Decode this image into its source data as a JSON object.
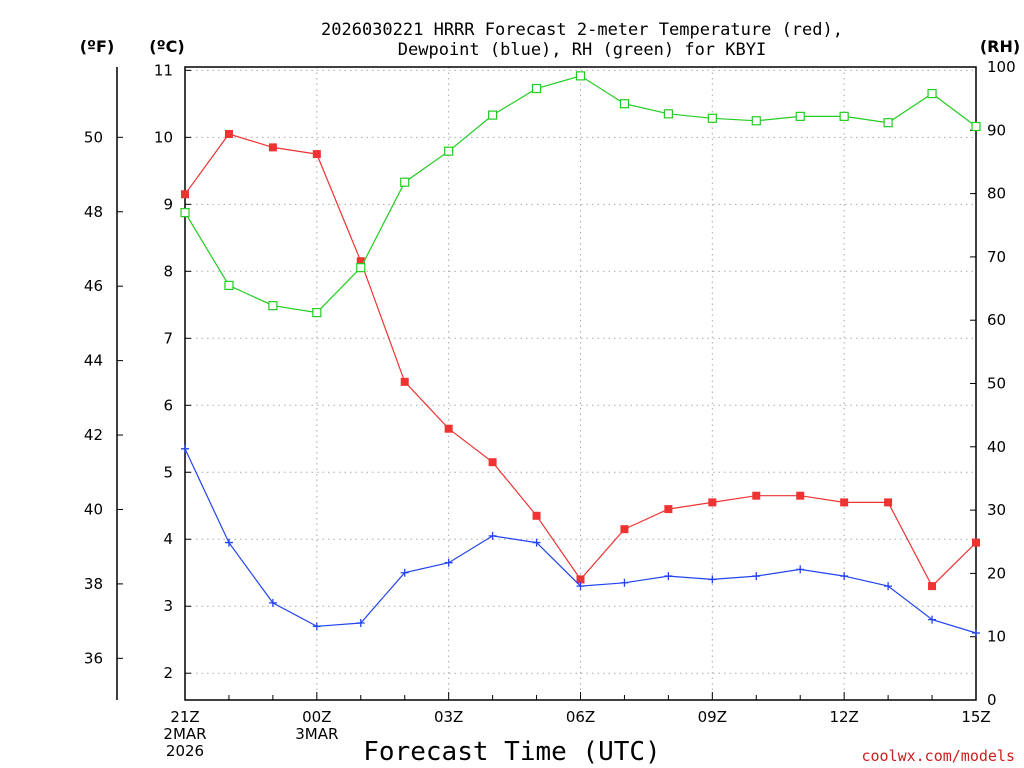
{
  "chart_data": {
    "type": "line",
    "title": [
      "2026030221 HRRR Forecast 2-meter Temperature (red),",
      "Dewpoint (blue), RH (green) for KBYI"
    ],
    "xlabel": "Forecast Time (UTC)",
    "credit": "coolwx.com/models",
    "units": {
      "fahrenheit": "(ºF)",
      "celsius": "(ºC)",
      "rh": "(RH)"
    },
    "x": [
      "21Z",
      "22Z",
      "23Z",
      "00Z",
      "01Z",
      "02Z",
      "03Z",
      "04Z",
      "05Z",
      "06Z",
      "07Z",
      "08Z",
      "09Z",
      "10Z",
      "11Z",
      "12Z",
      "13Z",
      "14Z",
      "15Z"
    ],
    "x_tick_labels": [
      {
        "hour": 0,
        "lines": [
          "21Z",
          "2MAR",
          "2026"
        ]
      },
      {
        "hour": 3,
        "lines": [
          "00Z",
          "3MAR"
        ]
      },
      {
        "hour": 6,
        "lines": [
          "03Z"
        ]
      },
      {
        "hour": 9,
        "lines": [
          "06Z"
        ]
      },
      {
        "hour": 12,
        "lines": [
          "09Z"
        ]
      },
      {
        "hour": 15,
        "lines": [
          "12Z"
        ]
      },
      {
        "hour": 18,
        "lines": [
          "15Z"
        ]
      }
    ],
    "y_celsius": {
      "ylim": [
        1.6,
        11.05
      ],
      "ticks": [
        2,
        3,
        4,
        5,
        6,
        7,
        8,
        9,
        10,
        11
      ]
    },
    "y_fahrenheit": {
      "ticks": [
        36,
        38,
        40,
        42,
        44,
        46,
        48,
        50
      ]
    },
    "y_rh": {
      "ylim": [
        0,
        100
      ],
      "ticks": [
        0,
        10,
        20,
        30,
        40,
        50,
        60,
        70,
        80,
        90,
        100
      ]
    },
    "grid": true,
    "series": [
      {
        "name": "Temperature",
        "axis": "celsius",
        "color": "#ee3333",
        "marker": "filled-square",
        "values": [
          9.15,
          10.05,
          9.85,
          9.75,
          8.15,
          6.35,
          5.65,
          5.15,
          4.35,
          3.4,
          4.15,
          4.45,
          4.55,
          4.65,
          4.65,
          4.55,
          4.55,
          3.3,
          3.95
        ]
      },
      {
        "name": "Dewpoint",
        "axis": "celsius",
        "color": "#2244ee",
        "marker": "plus",
        "values": [
          5.35,
          3.95,
          3.05,
          2.7,
          2.75,
          3.5,
          3.65,
          4.05,
          3.95,
          3.3,
          3.35,
          3.45,
          3.4,
          3.45,
          3.55,
          3.45,
          3.3,
          2.8,
          2.6
        ]
      },
      {
        "name": "RH",
        "axis": "rh",
        "color": "#22cc22",
        "marker": "open-square",
        "values": [
          77,
          65.5,
          62.3,
          61.2,
          68.3,
          81.8,
          86.7,
          92.4,
          96.6,
          98.6,
          94.2,
          92.6,
          91.9,
          91.5,
          92.2,
          92.2,
          91.2,
          95.8,
          90.6
        ]
      }
    ]
  }
}
